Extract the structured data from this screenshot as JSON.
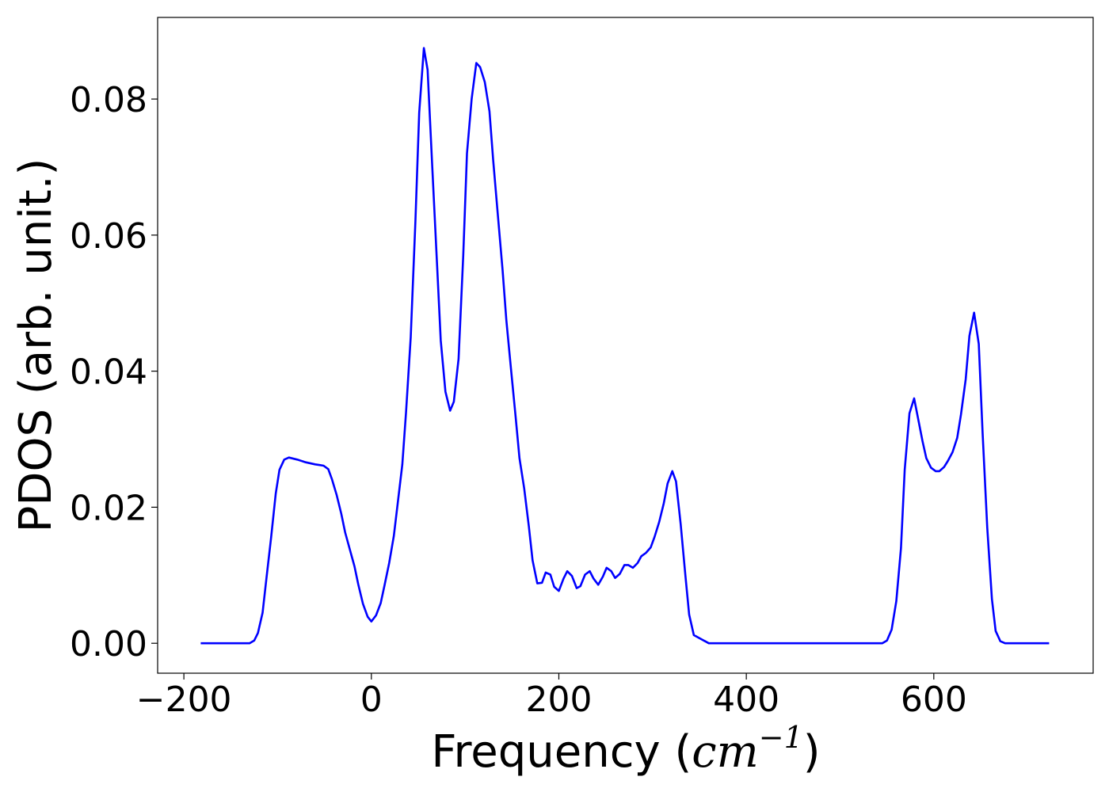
{
  "chart_data": {
    "type": "line",
    "title": "",
    "xlabel_main": "Frequency (",
    "xlabel_unit": "cm",
    "xlabel_exp": "−1",
    "xlabel_close": ")",
    "ylabel": "PDOS (arb. unit.)",
    "xlim": [
      -228,
      770
    ],
    "ylim": [
      -0.0044,
      0.092
    ],
    "xticks": [
      -200,
      0,
      200,
      400,
      600
    ],
    "xtick_labels": [
      "−200",
      "0",
      "200",
      "400",
      "600"
    ],
    "yticks": [
      0.0,
      0.02,
      0.04,
      0.06,
      0.08
    ],
    "ytick_labels": [
      "0.00",
      "0.02",
      "0.04",
      "0.06",
      "0.08"
    ],
    "grid": false,
    "series": [
      {
        "color": "#0000ff",
        "x": [
          -182,
          -130,
          -125,
          -121,
          -116,
          -112,
          -107,
          -102,
          -98,
          -93,
          -88,
          -79,
          -70,
          -60,
          -55,
          -51,
          -46,
          -42,
          -37,
          -32,
          -28,
          -23,
          -18,
          -14,
          -9,
          -4,
          0,
          5,
          10,
          14,
          19,
          24,
          28,
          33,
          37,
          42,
          47,
          51,
          56,
          60,
          65,
          70,
          74,
          79,
          84,
          88,
          93,
          98,
          102,
          107,
          112,
          116,
          121,
          126,
          130,
          135,
          140,
          144,
          149,
          154,
          158,
          163,
          168,
          172,
          177,
          182,
          186,
          191,
          195,
          200,
          205,
          209,
          214,
          219,
          223,
          228,
          233,
          237,
          242,
          247,
          251,
          256,
          260,
          265,
          270,
          274,
          279,
          284,
          288,
          293,
          298,
          302,
          307,
          312,
          316,
          321,
          325,
          330,
          335,
          339,
          344,
          360,
          400,
          500,
          545,
          550,
          555,
          560,
          565,
          569,
          574,
          579,
          583,
          588,
          592,
          597,
          602,
          606,
          611,
          615,
          620,
          625,
          629,
          634,
          638,
          643,
          648,
          652,
          657,
          662,
          666,
          671,
          676,
          680,
          723
        ],
        "y": [
          0.0,
          0.0,
          0.0004,
          0.0015,
          0.0045,
          0.0095,
          0.0155,
          0.022,
          0.0255,
          0.027,
          0.0273,
          0.027,
          0.0266,
          0.0263,
          0.0262,
          0.0261,
          0.0256,
          0.0241,
          0.0218,
          0.019,
          0.0163,
          0.0138,
          0.0113,
          0.0087,
          0.0058,
          0.0039,
          0.0032,
          0.0041,
          0.0059,
          0.0085,
          0.0118,
          0.0158,
          0.0204,
          0.0263,
          0.034,
          0.045,
          0.062,
          0.078,
          0.0875,
          0.0843,
          0.07,
          0.056,
          0.0445,
          0.037,
          0.0342,
          0.0355,
          0.0418,
          0.057,
          0.072,
          0.08,
          0.0853,
          0.0847,
          0.0825,
          0.0782,
          0.071,
          0.0628,
          0.0548,
          0.0475,
          0.0403,
          0.0332,
          0.0272,
          0.0228,
          0.0172,
          0.0122,
          0.0088,
          0.0089,
          0.0104,
          0.0101,
          0.0083,
          0.0077,
          0.0095,
          0.0106,
          0.0099,
          0.0081,
          0.0084,
          0.0101,
          0.0106,
          0.0095,
          0.0086,
          0.0098,
          0.0111,
          0.0106,
          0.0096,
          0.0102,
          0.0115,
          0.0115,
          0.0111,
          0.0118,
          0.0128,
          0.0133,
          0.0141,
          0.0156,
          0.0178,
          0.0206,
          0.0235,
          0.0253,
          0.0238,
          0.0175,
          0.01,
          0.0042,
          0.0012,
          0.0,
          0.0,
          0.0,
          0.0,
          0.0004,
          0.002,
          0.0062,
          0.014,
          0.0255,
          0.0338,
          0.036,
          0.0332,
          0.0297,
          0.0272,
          0.0258,
          0.0253,
          0.0253,
          0.0259,
          0.0268,
          0.0281,
          0.0302,
          0.0336,
          0.0388,
          0.0452,
          0.0486,
          0.044,
          0.031,
          0.017,
          0.0065,
          0.0018,
          0.0003,
          0.0,
          0.0,
          0.0
        ]
      }
    ]
  }
}
